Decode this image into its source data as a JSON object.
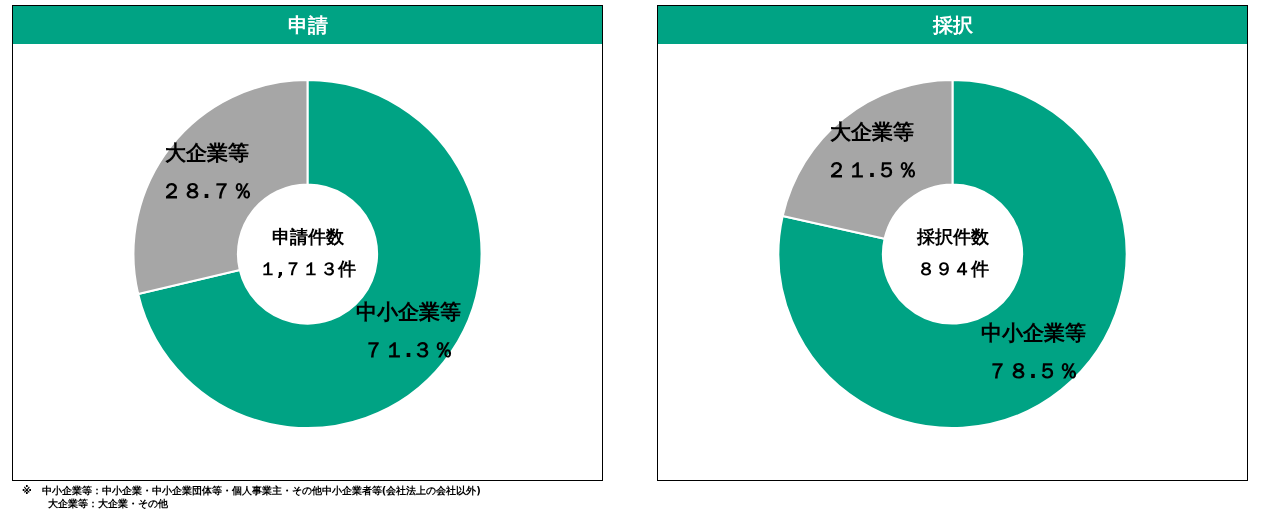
{
  "chart_data": [
    {
      "type": "donut",
      "title": "申請",
      "categories": [
        "中小企業等",
        "大企業等"
      ],
      "values": [
        71.3,
        28.7
      ],
      "colors": [
        "#00a384",
        "#a6a6a6"
      ],
      "value_labels": [
        "７１.３％",
        "２８.７％"
      ],
      "annotations": [
        "申請件数",
        "１,７１３件"
      ],
      "legend": false
    },
    {
      "type": "donut",
      "title": "採択",
      "categories": [
        "中小企業等",
        "大企業等"
      ],
      "values": [
        78.5,
        21.5
      ],
      "colors": [
        "#00a384",
        "#a6a6a6"
      ],
      "value_labels": [
        "７８.５％",
        "２１.５％"
      ],
      "annotations": [
        "採択件数",
        "８９４件"
      ],
      "legend": false
    },
    {
      "type": "other",
      "annotations": [
        "※　中小企業等：中小企業・中小企業団体等・個人事業主・その他中小企業者等(会社法上の会社以外)",
        "大企業等：大企業・その他"
      ]
    }
  ]
}
